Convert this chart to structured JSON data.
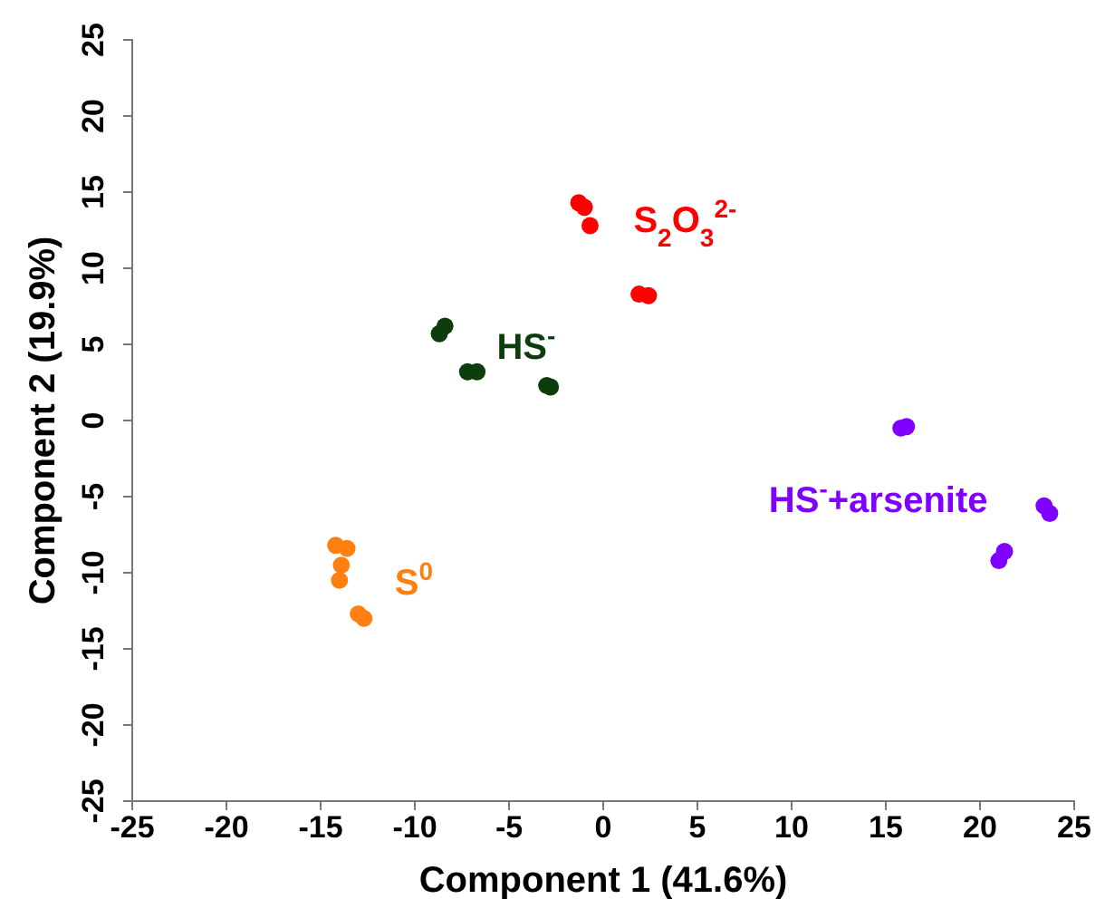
{
  "chart_data": {
    "type": "scatter",
    "xlabel": "Component 1 (41.6%)",
    "ylabel": "Component 2 (19.9%)",
    "xlim": [
      -25,
      25
    ],
    "ylim": [
      -25,
      25
    ],
    "xticks": [
      -25,
      -20,
      -15,
      -10,
      -5,
      0,
      5,
      10,
      15,
      20,
      25
    ],
    "yticks": [
      -25,
      -20,
      -15,
      -10,
      -5,
      0,
      5,
      10,
      15,
      20,
      25
    ],
    "marker": "circle",
    "grid": false,
    "legend": false,
    "series": [
      {
        "name": "S$_{2}$O$_{3}$$^{2-}$",
        "color": "#ff0000",
        "x": [
          -1.3,
          -1.0,
          -0.7,
          1.9,
          2.4
        ],
        "values": [
          14.3,
          14.0,
          12.8,
          8.3,
          8.2
        ]
      },
      {
        "name": "HS$^{-}$",
        "color": "#0d3d0d",
        "x": [
          -8.7,
          -8.4,
          -7.2,
          -6.7,
          -3.0,
          -2.8
        ],
        "values": [
          5.7,
          6.2,
          3.2,
          3.2,
          2.3,
          2.2
        ]
      },
      {
        "name": "S$^{0}$",
        "color": "#ff8010",
        "x": [
          -14.2,
          -13.6,
          -13.9,
          -14.0,
          -13.0,
          -12.7
        ],
        "values": [
          -8.2,
          -8.4,
          -9.5,
          -10.5,
          -12.7,
          -13.0
        ]
      },
      {
        "name": "HS$^{-}$+arsenite",
        "color": "#8000ff",
        "x": [
          15.8,
          16.1,
          23.4,
          23.7,
          21.3,
          21.0
        ],
        "values": [
          -0.5,
          -0.4,
          -5.6,
          -6.1,
          -8.6,
          -9.2
        ]
      }
    ]
  }
}
